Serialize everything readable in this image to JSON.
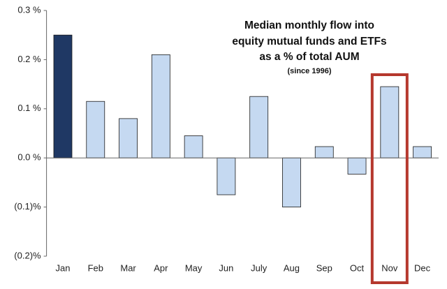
{
  "chart_data": {
    "type": "bar",
    "title_lines": [
      "Median monthly flow into",
      "equity mutual funds and ETFs",
      "as a % of total AUM"
    ],
    "subtitle": "(since 1996)",
    "categories": [
      "Jan",
      "Feb",
      "Mar",
      "Apr",
      "May",
      "Jun",
      "July",
      "Aug",
      "Sep",
      "Oct",
      "Nov",
      "Dec"
    ],
    "values": [
      0.25,
      0.115,
      0.08,
      0.21,
      0.045,
      -0.075,
      0.125,
      -0.1,
      0.023,
      -0.033,
      0.145,
      0.023
    ],
    "colors": [
      "#1f3864",
      "#c5d9f1",
      "#c5d9f1",
      "#c5d9f1",
      "#c5d9f1",
      "#c5d9f1",
      "#c5d9f1",
      "#c5d9f1",
      "#c5d9f1",
      "#c5d9f1",
      "#c5d9f1",
      "#c5d9f1"
    ],
    "ylim": [
      -0.2,
      0.3
    ],
    "yticks": [
      {
        "value": -0.2,
        "label": "(0.2)%"
      },
      {
        "value": -0.1,
        "label": "(0.1)%"
      },
      {
        "value": 0,
        "label": "0.0 %"
      },
      {
        "value": 0.1,
        "label": "0.1 %"
      },
      {
        "value": 0.2,
        "label": "0.2 %"
      },
      {
        "value": 0.3,
        "label": "0.3 %"
      }
    ],
    "grid": false,
    "highlight": "Nov",
    "highlight_color": "#b5382d"
  }
}
